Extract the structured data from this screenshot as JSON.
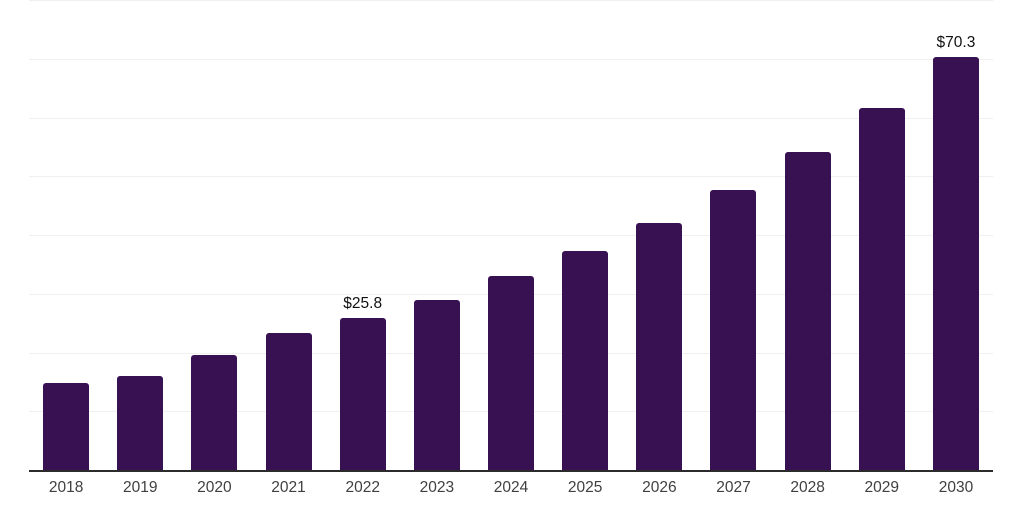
{
  "chart_data": {
    "type": "bar",
    "categories": [
      "2018",
      "2019",
      "2020",
      "2021",
      "2022",
      "2023",
      "2024",
      "2025",
      "2026",
      "2027",
      "2028",
      "2029",
      "2030"
    ],
    "values": [
      14.8,
      16.0,
      19.6,
      23.3,
      25.8,
      29.0,
      33.0,
      37.2,
      42.0,
      47.6,
      54.2,
      61.6,
      70.3
    ],
    "data_labels": [
      "",
      "",
      "",
      "",
      "$25.8",
      "",
      "",
      "",
      "",
      "",
      "",
      "",
      "$70.3"
    ],
    "title": "",
    "xlabel": "",
    "ylabel": "",
    "ylim": [
      0,
      80
    ],
    "gridline_step": 10,
    "grid": "horizontal-only",
    "legend_position": "none",
    "y_tick_labels_visible": false,
    "colors": {
      "bar": "#381152",
      "grid": "#f0f0f0",
      "axis": "#2b2b2b",
      "tick_label": "#404040",
      "data_label": "#111111",
      "background": "#ffffff"
    }
  }
}
